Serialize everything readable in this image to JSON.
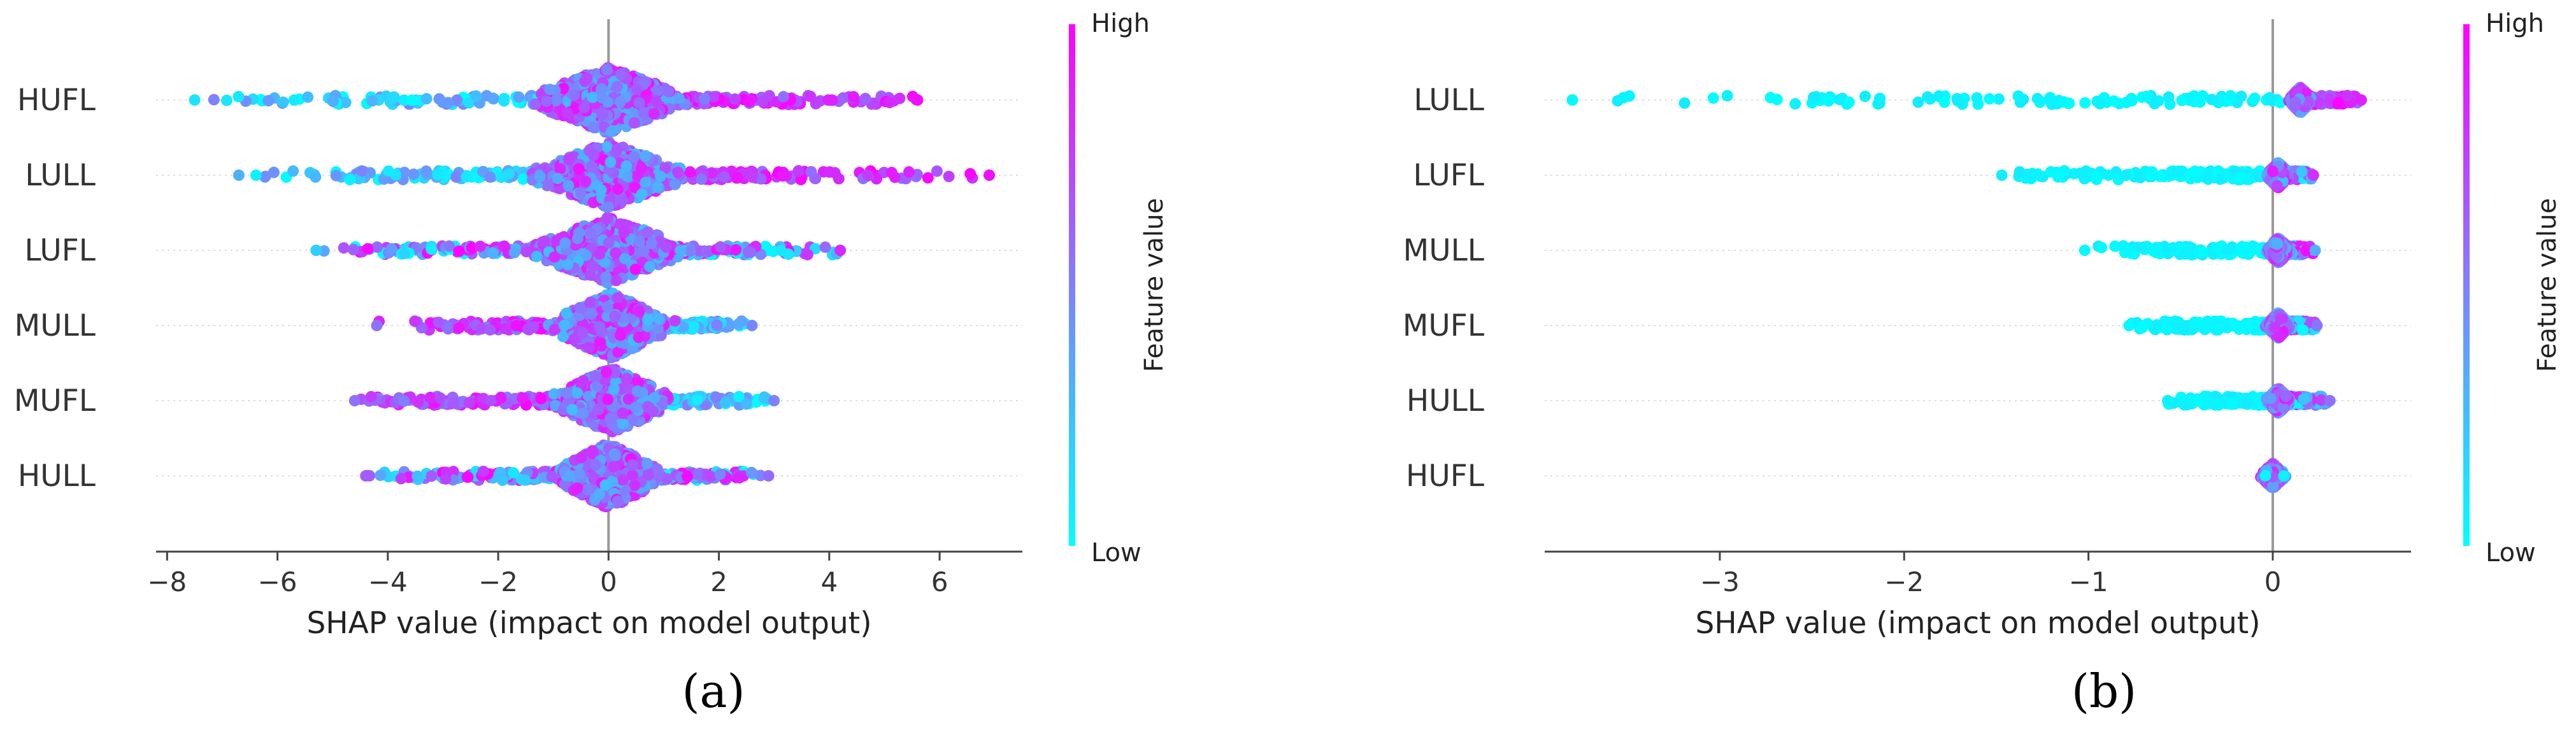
{
  "panels": [
    "(a)",
    "(b)"
  ],
  "colors": {
    "low": "#00ffff",
    "high": "#ff00ff",
    "zero_line": "#999999",
    "axis": "#444444",
    "gridline": "#dddddd"
  },
  "chart_data": [
    {
      "type": "scatter",
      "subtype": "shap-beeswarm",
      "panel_label": "(a)",
      "xlabel": "SHAP value (impact on model output)",
      "xlim": [
        -8.2,
        7.5
      ],
      "xticks": [
        -8,
        -6,
        -4,
        -2,
        0,
        2,
        4,
        6
      ],
      "tick_labels": [
        "−8",
        "−6",
        "−4",
        "−2",
        "0",
        "2",
        "4",
        "6"
      ],
      "colorbar": {
        "title": "Feature value",
        "high": "High",
        "low": "Low"
      },
      "features": [
        {
          "name": "HUFL",
          "min": -7.5,
          "max": 5.6,
          "core": [
            -0.7,
            0.7
          ],
          "skew_high": "positive"
        },
        {
          "name": "LULL",
          "min": -6.7,
          "max": 6.9,
          "core": [
            -0.7,
            0.7
          ],
          "skew_high": "positive"
        },
        {
          "name": "LUFL",
          "min": -5.3,
          "max": 4.2,
          "core": [
            -0.7,
            0.7
          ],
          "skew_high": "mixed"
        },
        {
          "name": "MULL",
          "min": -4.2,
          "max": 2.6,
          "core": [
            -0.5,
            0.6
          ],
          "skew_high": "negative"
        },
        {
          "name": "MUFL",
          "min": -4.6,
          "max": 3.0,
          "core": [
            -0.5,
            0.6
          ],
          "skew_high": "negative"
        },
        {
          "name": "HULL",
          "min": -4.4,
          "max": 2.9,
          "core": [
            -0.5,
            0.5
          ],
          "skew_high": "mixed"
        }
      ]
    },
    {
      "type": "scatter",
      "subtype": "shap-beeswarm",
      "panel_label": "(b)",
      "xlabel": "SHAP value (impact on model output)",
      "xlim": [
        -3.95,
        0.75
      ],
      "xticks": [
        -3,
        -2,
        -1,
        0
      ],
      "tick_labels": [
        "−3",
        "−2",
        "−1",
        "0"
      ],
      "colorbar": {
        "title": "Feature value",
        "high": "High",
        "low": "Low"
      },
      "features": [
        {
          "name": "LULL",
          "min": -3.8,
          "max": 0.48,
          "core": [
            0.12,
            0.18
          ],
          "skew_high": "positive"
        },
        {
          "name": "LUFL",
          "min": -1.47,
          "max": 0.22,
          "core": [
            0.0,
            0.06
          ],
          "skew_high": "mixed"
        },
        {
          "name": "MULL",
          "min": -1.02,
          "max": 0.23,
          "core": [
            0.0,
            0.06
          ],
          "skew_high": "mixed"
        },
        {
          "name": "MUFL",
          "min": -0.78,
          "max": 0.24,
          "core": [
            0.0,
            0.06
          ],
          "skew_high": "mixed"
        },
        {
          "name": "HULL",
          "min": -0.57,
          "max": 0.31,
          "core": [
            0.0,
            0.06
          ],
          "skew_high": "mixed"
        },
        {
          "name": "HUFL",
          "min": -0.04,
          "max": 0.06,
          "core": [
            -0.03,
            0.03
          ],
          "skew_high": "low"
        }
      ]
    }
  ]
}
